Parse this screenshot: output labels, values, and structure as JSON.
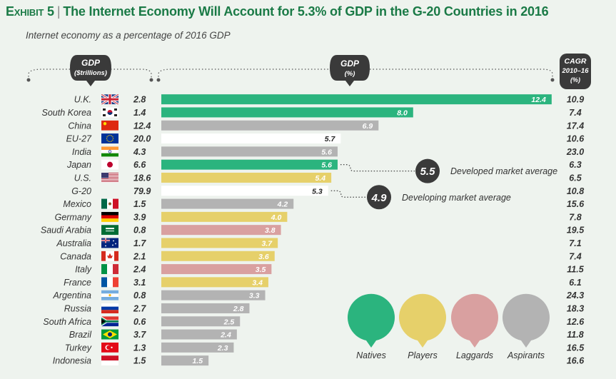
{
  "title": {
    "exhibit": "Exhibit 5",
    "separator": "|",
    "text": "The Internet Economy Will Account for 5.3% of GDP in the G-20 Countries in 2016"
  },
  "subtitle": "Internet economy as a percentage of 2016 GDP",
  "headers": {
    "gdp_trillions": [
      "GDP",
      "($trillions)"
    ],
    "gdp_percent": [
      "GDP",
      "(%)"
    ],
    "cagr": [
      "CAGR",
      "2010–16",
      "(%)"
    ]
  },
  "colors": {
    "natives": "#2bb47e",
    "players": "#e6d06a",
    "laggards": "#d9a0a0",
    "aspirants": "#b3b3b3",
    "average": "#ffffff",
    "badge": "#3a3a3a",
    "text": "#333333"
  },
  "annotations": [
    {
      "value": "5.5",
      "label": "Developed market average",
      "row": "Japan"
    },
    {
      "value": "4.9",
      "label": "Developing market average",
      "row": "G-20"
    }
  ],
  "legend": [
    {
      "key": "natives",
      "label": "Natives"
    },
    {
      "key": "players",
      "label": "Players"
    },
    {
      "key": "laggards",
      "label": "Laggards"
    },
    {
      "key": "aspirants",
      "label": "Aspirants"
    }
  ],
  "chart_data": {
    "type": "bar",
    "orientation": "horizontal",
    "title": "The Internet Economy Will Account for 5.3% of GDP in the G-20 Countries in 2016",
    "xlabel": "GDP (%)",
    "xlim": [
      0,
      13
    ],
    "grid": false,
    "legend_position": "bottom-right",
    "rows": [
      {
        "country": "U.K.",
        "flag": "uk",
        "gdp": "2.8",
        "value": 12.4,
        "label": "12.4",
        "category": "natives",
        "cagr": "10.9"
      },
      {
        "country": "South Korea",
        "flag": "kr",
        "gdp": "1.4",
        "value": 8.0,
        "label": "8.0",
        "category": "natives",
        "cagr": "7.4"
      },
      {
        "country": "China",
        "flag": "cn",
        "gdp": "12.4",
        "value": 6.9,
        "label": "6.9",
        "category": "aspirants",
        "cagr": "17.4"
      },
      {
        "country": "EU-27",
        "flag": "eu",
        "gdp": "20.0",
        "value": 5.7,
        "label": "5.7",
        "category": "average",
        "cagr": "10.6"
      },
      {
        "country": "India",
        "flag": "in",
        "gdp": "4.3",
        "value": 5.6,
        "label": "5.6",
        "category": "aspirants",
        "cagr": "23.0"
      },
      {
        "country": "Japan",
        "flag": "jp",
        "gdp": "6.6",
        "value": 5.6,
        "label": "5.6",
        "category": "natives",
        "cagr": "6.3"
      },
      {
        "country": "U.S.",
        "flag": "us",
        "gdp": "18.6",
        "value": 5.4,
        "label": "5.4",
        "category": "players",
        "cagr": "6.5"
      },
      {
        "country": "G-20",
        "flag": "",
        "gdp": "79.9",
        "value": 5.3,
        "label": "5.3",
        "category": "average",
        "cagr": "10.8"
      },
      {
        "country": "Mexico",
        "flag": "mx",
        "gdp": "1.5",
        "value": 4.2,
        "label": "4.2",
        "category": "aspirants",
        "cagr": "15.6"
      },
      {
        "country": "Germany",
        "flag": "de",
        "gdp": "3.9",
        "value": 4.0,
        "label": "4.0",
        "category": "players",
        "cagr": "7.8"
      },
      {
        "country": "Saudi Arabia",
        "flag": "sa",
        "gdp": "0.8",
        "value": 3.8,
        "label": "3.8",
        "category": "laggards",
        "cagr": "19.5"
      },
      {
        "country": "Australia",
        "flag": "au",
        "gdp": "1.7",
        "value": 3.7,
        "label": "3.7",
        "category": "players",
        "cagr": "7.1"
      },
      {
        "country": "Canada",
        "flag": "ca",
        "gdp": "2.1",
        "value": 3.6,
        "label": "3.6",
        "category": "players",
        "cagr": "7.4"
      },
      {
        "country": "Italy",
        "flag": "it",
        "gdp": "2.4",
        "value": 3.5,
        "label": "3.5",
        "category": "laggards",
        "cagr": "11.5"
      },
      {
        "country": "France",
        "flag": "fr",
        "gdp": "3.1",
        "value": 3.4,
        "label": "3.4",
        "category": "players",
        "cagr": "6.1"
      },
      {
        "country": "Argentina",
        "flag": "ar",
        "gdp": "0.8",
        "value": 3.3,
        "label": "3.3",
        "category": "aspirants",
        "cagr": "24.3"
      },
      {
        "country": "Russia",
        "flag": "ru",
        "gdp": "2.7",
        "value": 2.8,
        "label": "2.8",
        "category": "aspirants",
        "cagr": "18.3"
      },
      {
        "country": "South Africa",
        "flag": "za",
        "gdp": "0.6",
        "value": 2.5,
        "label": "2.5",
        "category": "aspirants",
        "cagr": "12.6"
      },
      {
        "country": "Brazil",
        "flag": "br",
        "gdp": "3.7",
        "value": 2.4,
        "label": "2.4",
        "category": "aspirants",
        "cagr": "11.8"
      },
      {
        "country": "Turkey",
        "flag": "tr",
        "gdp": "1.3",
        "value": 2.3,
        "label": "2.3",
        "category": "aspirants",
        "cagr": "16.5"
      },
      {
        "country": "Indonesia",
        "flag": "id",
        "gdp": "1.5",
        "value": 1.5,
        "label": "1.5",
        "category": "aspirants",
        "cagr": "16.6"
      }
    ]
  }
}
